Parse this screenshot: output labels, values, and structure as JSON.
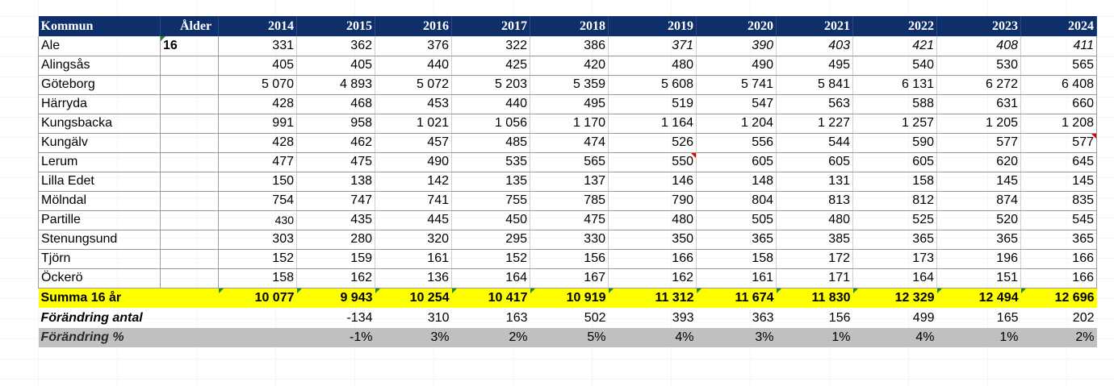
{
  "header": {
    "kommun": "Kommun",
    "alder": "Ålder",
    "years": [
      "2014",
      "2015",
      "2016",
      "2017",
      "2018",
      "2019",
      "2020",
      "2021",
      "2022",
      "2023",
      "2024"
    ]
  },
  "age_value": "16",
  "rows": [
    {
      "name": "Ale",
      "values": [
        "331",
        "362",
        "376",
        "322",
        "386",
        "371",
        "390",
        "403",
        "421",
        "408",
        "411"
      ]
    },
    {
      "name": "Alingsås",
      "values": [
        "405",
        "405",
        "440",
        "425",
        "420",
        "480",
        "490",
        "495",
        "540",
        "530",
        "565"
      ]
    },
    {
      "name": "Göteborg",
      "values": [
        "5 070",
        "4 893",
        "5 072",
        "5 203",
        "5 359",
        "5 608",
        "5 741",
        "5 841",
        "6 131",
        "6 272",
        "6 408"
      ]
    },
    {
      "name": "Härryda",
      "values": [
        "428",
        "468",
        "453",
        "440",
        "495",
        "519",
        "547",
        "563",
        "588",
        "631",
        "660"
      ]
    },
    {
      "name": "Kungsbacka",
      "values": [
        "991",
        "958",
        "1 021",
        "1 056",
        "1 170",
        "1 164",
        "1 204",
        "1 227",
        "1 257",
        "1 205",
        "1 208"
      ]
    },
    {
      "name": "Kungälv",
      "values": [
        "428",
        "462",
        "457",
        "485",
        "474",
        "526",
        "556",
        "544",
        "590",
        "577",
        "577"
      ]
    },
    {
      "name": "Lerum",
      "values": [
        "477",
        "475",
        "490",
        "535",
        "565",
        "550",
        "605",
        "605",
        "605",
        "620",
        "645"
      ]
    },
    {
      "name": "Lilla Edet",
      "values": [
        "150",
        "138",
        "142",
        "135",
        "137",
        "146",
        "148",
        "131",
        "158",
        "145",
        "145"
      ]
    },
    {
      "name": "Mölndal",
      "values": [
        "754",
        "747",
        "741",
        "755",
        "785",
        "790",
        "804",
        "813",
        "812",
        "874",
        "835"
      ]
    },
    {
      "name": "Partille",
      "values": [
        "430",
        "435",
        "445",
        "450",
        "475",
        "480",
        "505",
        "480",
        "525",
        "520",
        "545"
      ]
    },
    {
      "name": "Stenungsund",
      "values": [
        "303",
        "280",
        "320",
        "295",
        "330",
        "350",
        "365",
        "385",
        "365",
        "365",
        "365"
      ]
    },
    {
      "name": "Tjörn",
      "values": [
        "152",
        "159",
        "161",
        "152",
        "156",
        "166",
        "158",
        "172",
        "173",
        "196",
        "166"
      ]
    },
    {
      "name": "Öckerö",
      "values": [
        "158",
        "162",
        "136",
        "164",
        "167",
        "162",
        "161",
        "171",
        "164",
        "151",
        "166"
      ]
    }
  ],
  "sum": {
    "label": "Summa  16 år",
    "values": [
      "10 077",
      "9 943",
      "10 254",
      "10 417",
      "10 919",
      "11 312",
      "11 674",
      "11 830",
      "12 329",
      "12 494",
      "12 696"
    ]
  },
  "change_count": {
    "label": "Förändring  antal",
    "values": [
      "",
      "-134",
      "310",
      "163",
      "502",
      "393",
      "363",
      "156",
      "499",
      "165",
      "202"
    ]
  },
  "change_pct": {
    "label": "Förändring %",
    "values": [
      "",
      "-1%",
      "3%",
      "2%",
      "5%",
      "4%",
      "3%",
      "1%",
      "4%",
      "1%",
      "2%"
    ]
  },
  "colors": {
    "header_bg": "#0f2f6b",
    "sum_bg": "#ffff00",
    "pct_bg": "#c0c0c0",
    "comment_green": "#1a8a2a",
    "comment_red": "#e00000"
  }
}
